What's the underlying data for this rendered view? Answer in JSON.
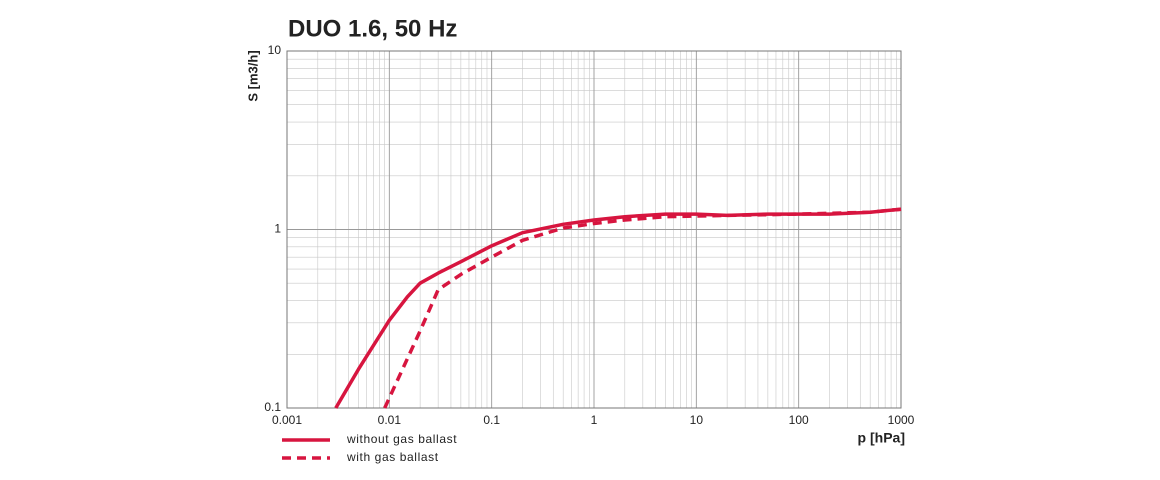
{
  "chart_data": {
    "type": "line",
    "title": "DUO 1.6, 50 Hz",
    "x_label": "p [hPa]",
    "y_label": "S [m3/h]",
    "x_log": true,
    "y_log": true,
    "grid": true,
    "minor_grid": true,
    "legend": "bottom-left",
    "xlim": [
      0.001,
      1000
    ],
    "ylim": [
      0.1,
      10
    ],
    "xticks": [
      0.001,
      0.01,
      0.1,
      1,
      10,
      100,
      1000
    ],
    "yticks": [
      0.1,
      1,
      10
    ],
    "series": [
      {
        "name": "without gas ballast",
        "color": "#d7153f",
        "style": "solid",
        "x": [
          0.003,
          0.005,
          0.01,
          0.015,
          0.02,
          0.03,
          0.05,
          0.1,
          0.2,
          0.5,
          1,
          2,
          5,
          10,
          20,
          50,
          100,
          200,
          500,
          1000
        ],
        "values": [
          0.1,
          0.165,
          0.31,
          0.42,
          0.5,
          0.57,
          0.66,
          0.81,
          0.96,
          1.07,
          1.13,
          1.18,
          1.22,
          1.22,
          1.2,
          1.22,
          1.22,
          1.22,
          1.25,
          1.3
        ]
      },
      {
        "name": "with gas ballast",
        "color": "#d7153f",
        "style": "dashed",
        "x": [
          0.009,
          0.02,
          0.03,
          0.05,
          0.1,
          0.2,
          0.5,
          1,
          2,
          5,
          10,
          100,
          500,
          1000
        ],
        "values": [
          0.1,
          0.27,
          0.46,
          0.56,
          0.7,
          0.87,
          1.02,
          1.08,
          1.13,
          1.18,
          1.19,
          1.22,
          1.25,
          1.3
        ]
      }
    ]
  }
}
